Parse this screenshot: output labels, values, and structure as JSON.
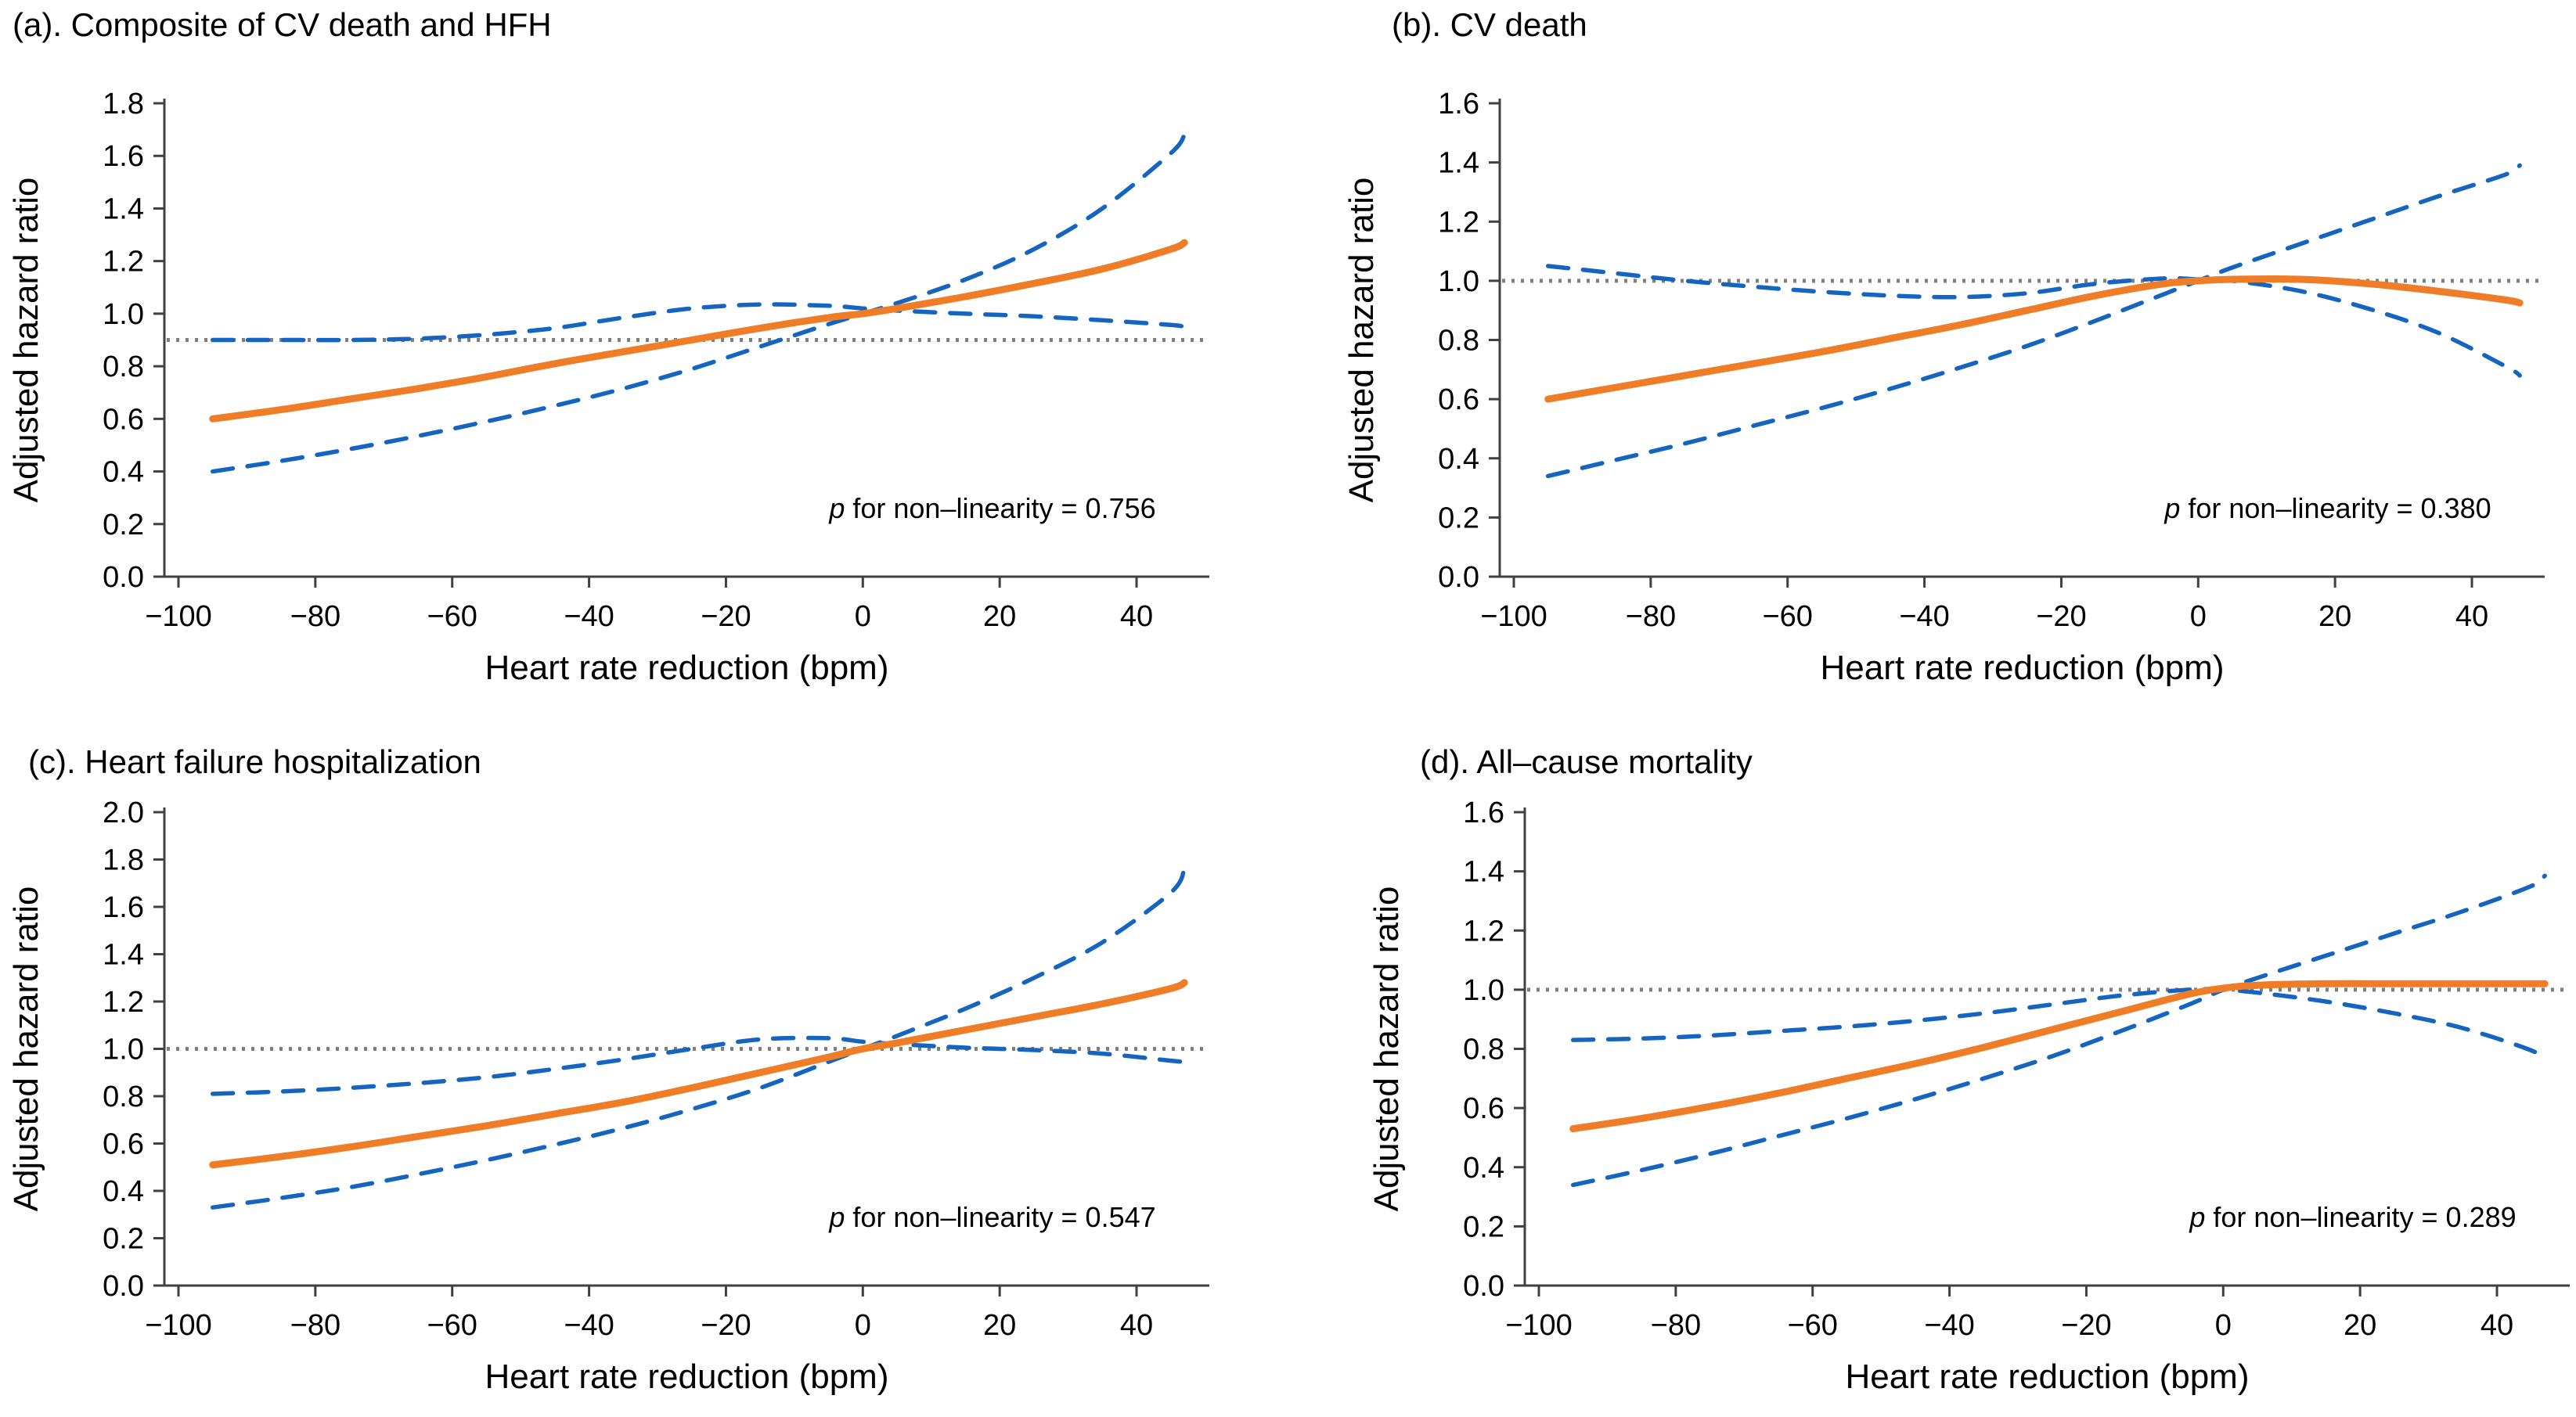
{
  "figure_title": "Spline curves of adjusted hazard ratio by heart rate reduction",
  "colors": {
    "estimate": "#EF7D28",
    "ci": "#1565C0",
    "reference": "#7F7F7F",
    "axis": "#404040",
    "text": "#000000"
  },
  "chart_data": [
    {
      "type": "line",
      "id": "a",
      "title": "(a). Composite of CV death and HFH",
      "p_italic": "p",
      "p_text": " for non–linearity = 0.756",
      "xlabel": "Heart rate reduction (bpm)",
      "ylabel": "Adjusted hazard ratio",
      "x_ticks": [
        -100,
        -80,
        -60,
        -40,
        -20,
        0,
        20,
        40
      ],
      "y_max": 1.8,
      "y_tick_step": 0.2,
      "reference_line": 0.9,
      "grid": false,
      "x": [
        -95,
        -85,
        -75,
        -65,
        -55,
        -45,
        -35,
        -25,
        -15,
        -5,
        0,
        5,
        15,
        25,
        35,
        45,
        47
      ],
      "series": [
        {
          "name": "point estimate",
          "style": "solid",
          "y": [
            0.6,
            0.635,
            0.675,
            0.715,
            0.76,
            0.81,
            0.855,
            0.9,
            0.945,
            0.985,
            1.0,
            1.02,
            1.065,
            1.115,
            1.17,
            1.245,
            1.27
          ]
        },
        {
          "name": "95% CI bound 1",
          "style": "dashed",
          "y": [
            0.9,
            0.9,
            0.9,
            0.905,
            0.92,
            0.945,
            0.985,
            1.02,
            1.035,
            1.03,
            1.02,
            1.012,
            1.0,
            0.99,
            0.975,
            0.957,
            0.95
          ]
        },
        {
          "name": "95% CI bound 2",
          "style": "dashed",
          "y": [
            0.4,
            0.44,
            0.485,
            0.535,
            0.59,
            0.65,
            0.715,
            0.79,
            0.875,
            0.96,
            1.0,
            1.04,
            1.13,
            1.245,
            1.4,
            1.61,
            1.68
          ]
        }
      ]
    },
    {
      "type": "line",
      "id": "b",
      "title": "(b). CV death",
      "p_italic": "p",
      "p_text": " for non–linearity = 0.380",
      "xlabel": "Heart rate reduction (bpm)",
      "ylabel": "Adjusted hazard ratio",
      "x_ticks": [
        -100,
        -80,
        -60,
        -40,
        -20,
        0,
        20,
        40
      ],
      "y_max": 1.6,
      "y_tick_step": 0.2,
      "reference_line": 1.0,
      "grid": false,
      "x": [
        -95,
        -85,
        -75,
        -65,
        -55,
        -45,
        -35,
        -25,
        -15,
        -5,
        0,
        5,
        15,
        25,
        35,
        45,
        47
      ],
      "series": [
        {
          "name": "point estimate",
          "style": "solid",
          "y": [
            0.6,
            0.64,
            0.68,
            0.72,
            0.76,
            0.805,
            0.85,
            0.9,
            0.95,
            0.99,
            1.0,
            1.005,
            1.005,
            0.99,
            0.965,
            0.935,
            0.925
          ]
        },
        {
          "name": "95% CI bound 1",
          "style": "dashed",
          "y": [
            1.05,
            1.025,
            1.0,
            0.98,
            0.963,
            0.95,
            0.945,
            0.958,
            0.99,
            1.008,
            1.005,
            1.0,
            0.965,
            0.905,
            0.825,
            0.71,
            0.68
          ]
        },
        {
          "name": "95% CI bound 2",
          "style": "dashed",
          "y": [
            0.34,
            0.395,
            0.45,
            0.51,
            0.57,
            0.635,
            0.705,
            0.78,
            0.865,
            0.955,
            1.0,
            1.045,
            1.125,
            1.205,
            1.285,
            1.36,
            1.39
          ]
        }
      ]
    },
    {
      "type": "line",
      "id": "c",
      "title": "(c). Heart failure hospitalization",
      "p_italic": "p",
      "p_text": " for non–linearity = 0.547",
      "xlabel": "Heart rate reduction (bpm)",
      "ylabel": "Adjusted hazard ratio",
      "x_ticks": [
        -100,
        -80,
        -60,
        -40,
        -20,
        0,
        20,
        40
      ],
      "y_max": 2.0,
      "y_tick_step": 0.2,
      "reference_line": 1.0,
      "grid": false,
      "x": [
        -95,
        -85,
        -75,
        -65,
        -55,
        -45,
        -35,
        -25,
        -15,
        -5,
        0,
        5,
        15,
        25,
        35,
        45,
        47
      ],
      "series": [
        {
          "name": "point estimate",
          "style": "solid",
          "y": [
            0.51,
            0.545,
            0.585,
            0.63,
            0.675,
            0.725,
            0.775,
            0.835,
            0.9,
            0.965,
            1.0,
            1.025,
            1.08,
            1.135,
            1.19,
            1.255,
            1.28
          ]
        },
        {
          "name": "95% CI bound 1",
          "style": "dashed",
          "y": [
            0.81,
            0.82,
            0.835,
            0.855,
            0.88,
            0.915,
            0.955,
            1.0,
            1.04,
            1.045,
            1.03,
            1.02,
            1.005,
            0.995,
            0.98,
            0.95,
            0.945
          ]
        },
        {
          "name": "95% CI bound 2",
          "style": "dashed",
          "y": [
            0.33,
            0.37,
            0.415,
            0.47,
            0.53,
            0.595,
            0.665,
            0.745,
            0.835,
            0.945,
            1.0,
            1.055,
            1.17,
            1.3,
            1.45,
            1.66,
            1.76
          ]
        }
      ]
    },
    {
      "type": "line",
      "id": "d",
      "title": "(d). All–cause mortality",
      "p_italic": "p",
      "p_text": " for non–linearity = 0.289",
      "xlabel": "Heart rate reduction (bpm)",
      "ylabel": "Adjusted hazard ratio",
      "x_ticks": [
        -100,
        -80,
        -60,
        -40,
        -20,
        0,
        20,
        40
      ],
      "y_max": 1.6,
      "y_tick_step": 0.2,
      "reference_line": 1.0,
      "grid": false,
      "x": [
        -95,
        -85,
        -75,
        -65,
        -55,
        -45,
        -35,
        -25,
        -15,
        -5,
        0,
        5,
        15,
        25,
        35,
        45,
        47
      ],
      "series": [
        {
          "name": "point estimate",
          "style": "solid",
          "y": [
            0.53,
            0.565,
            0.605,
            0.65,
            0.7,
            0.75,
            0.805,
            0.865,
            0.925,
            0.985,
            1.005,
            1.015,
            1.02,
            1.02,
            1.02,
            1.02,
            1.02
          ]
        },
        {
          "name": "95% CI bound 1",
          "style": "dashed",
          "y": [
            0.83,
            0.835,
            0.845,
            0.86,
            0.875,
            0.895,
            0.92,
            0.95,
            0.98,
            1.0,
            1.0,
            0.99,
            0.96,
            0.92,
            0.87,
            0.795,
            0.76
          ]
        },
        {
          "name": "95% CI bound 2",
          "style": "dashed",
          "y": [
            0.34,
            0.39,
            0.445,
            0.505,
            0.565,
            0.63,
            0.7,
            0.775,
            0.86,
            0.95,
            1.0,
            1.04,
            1.115,
            1.19,
            1.265,
            1.35,
            1.385
          ]
        }
      ]
    }
  ]
}
